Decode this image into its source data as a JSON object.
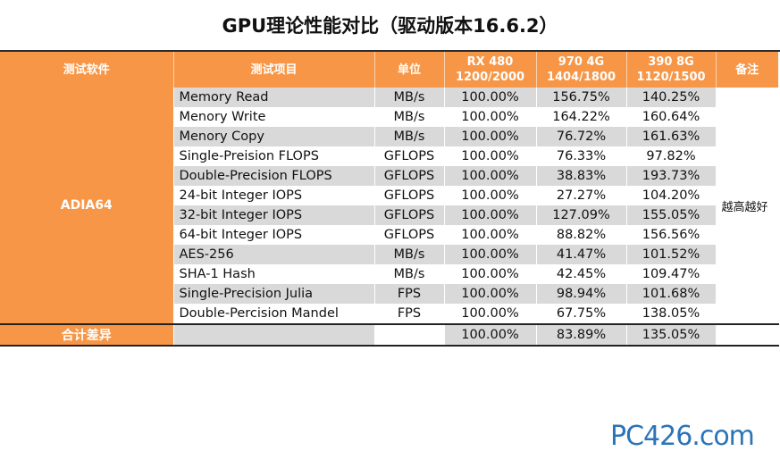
{
  "title": "GPU理论性能对比（驱动版本16.6.2）",
  "headers": {
    "software": "测试软件",
    "item": "测试项目",
    "unit": "单位",
    "gpu1_line1": "RX 480",
    "gpu1_line2": "1200/2000",
    "gpu2_line1": "970 4G",
    "gpu2_line2": "1404/1800",
    "gpu3_line1": "390 8G",
    "gpu3_line2": "1120/1500",
    "note": "备注"
  },
  "software_name": "ADIA64",
  "note_text": "越高越好",
  "rows": [
    {
      "item": "Memory Read",
      "unit": "MB/s",
      "rx480": "100.00%",
      "gtx970": "156.75%",
      "r390": "140.25%"
    },
    {
      "item": "Menory Write",
      "unit": "MB/s",
      "rx480": "100.00%",
      "gtx970": "164.22%",
      "r390": "160.64%"
    },
    {
      "item": "Menory Copy",
      "unit": "MB/s",
      "rx480": "100.00%",
      "gtx970": "76.72%",
      "r390": "161.63%"
    },
    {
      "item": "Single-Preision FLOPS",
      "unit": "GFLOPS",
      "rx480": "100.00%",
      "gtx970": "76.33%",
      "r390": "97.82%"
    },
    {
      "item": "Double-Precision FLOPS",
      "unit": "GFLOPS",
      "rx480": "100.00%",
      "gtx970": "38.83%",
      "r390": "193.73%"
    },
    {
      "item": "24-bit Integer IOPS",
      "unit": "GFLOPS",
      "rx480": "100.00%",
      "gtx970": "27.27%",
      "r390": "104.20%"
    },
    {
      "item": "32-bit Integer IOPS",
      "unit": "GFLOPS",
      "rx480": "100.00%",
      "gtx970": "127.09%",
      "r390": "155.05%"
    },
    {
      "item": "64-bit Integer IOPS",
      "unit": "GFLOPS",
      "rx480": "100.00%",
      "gtx970": "88.82%",
      "r390": "156.56%"
    },
    {
      "item": "AES-256",
      "unit": "MB/s",
      "rx480": "100.00%",
      "gtx970": "41.47%",
      "r390": "101.52%"
    },
    {
      "item": "SHA-1 Hash",
      "unit": "MB/s",
      "rx480": "100.00%",
      "gtx970": "42.45%",
      "r390": "109.47%"
    },
    {
      "item": "Single-Precision Julia",
      "unit": "FPS",
      "rx480": "100.00%",
      "gtx970": "98.94%",
      "r390": "101.68%"
    },
    {
      "item": "Double-Percision Mandel",
      "unit": "FPS",
      "rx480": "100.00%",
      "gtx970": "67.75%",
      "r390": "138.05%"
    }
  ],
  "total": {
    "label": "合计差异",
    "rx480": "100.00%",
    "gtx970": "83.89%",
    "r390": "135.05%"
  },
  "watermark": "PC426.com",
  "colors": {
    "header_orange": "#f79646",
    "row_gray": "#d9d9d9",
    "logo_blue": "#2b74b8"
  }
}
